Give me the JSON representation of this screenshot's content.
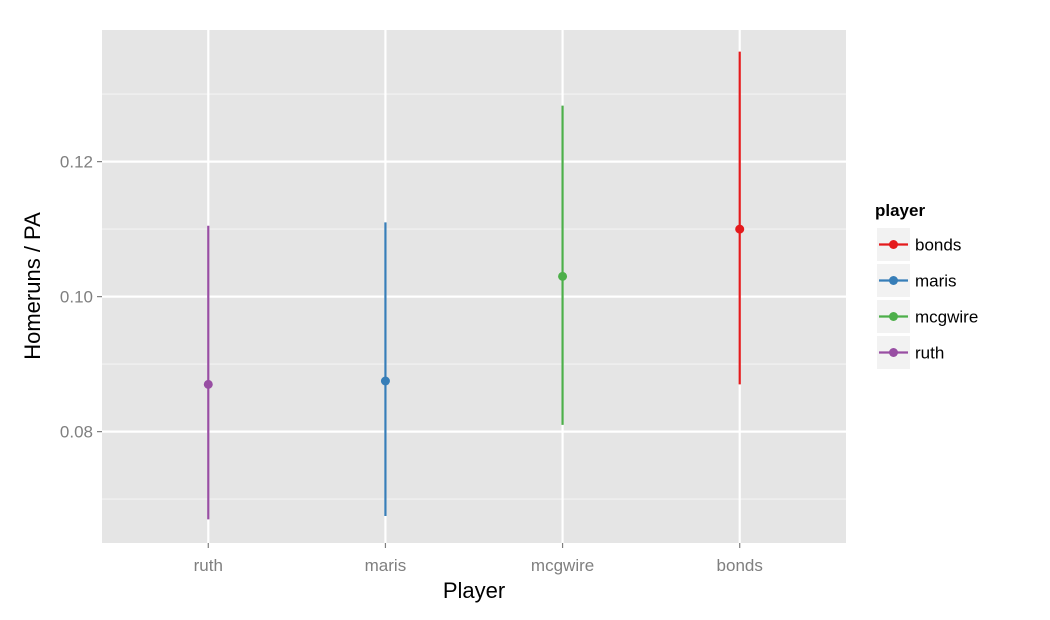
{
  "chart_data": {
    "type": "pointrange",
    "xlabel": "Player",
    "ylabel": "Homeruns / PA",
    "categories": [
      "ruth",
      "maris",
      "mcgwire",
      "bonds"
    ],
    "ylim": [
      0.0635,
      0.1395
    ],
    "yticks": [
      0.08,
      0.1,
      0.12
    ],
    "ytick_labels": [
      "0.08",
      "0.10",
      "0.12"
    ],
    "grid": true,
    "series": [
      {
        "category": "ruth",
        "estimate": 0.087,
        "lower": 0.067,
        "upper": 0.1105,
        "color": "#984EA3"
      },
      {
        "category": "maris",
        "estimate": 0.0875,
        "lower": 0.0675,
        "upper": 0.111,
        "color": "#377EB8"
      },
      {
        "category": "mcgwire",
        "estimate": 0.103,
        "lower": 0.081,
        "upper": 0.1283,
        "color": "#4DAF4A"
      },
      {
        "category": "bonds",
        "estimate": 0.11,
        "lower": 0.087,
        "upper": 0.1363,
        "color": "#E41A1C"
      }
    ],
    "legend": {
      "title": "player",
      "position": "right",
      "entries": [
        {
          "label": "bonds",
          "color": "#E41A1C"
        },
        {
          "label": "maris",
          "color": "#377EB8"
        },
        {
          "label": "mcgwire",
          "color": "#4DAF4A"
        },
        {
          "label": "ruth",
          "color": "#984EA3"
        }
      ]
    }
  }
}
